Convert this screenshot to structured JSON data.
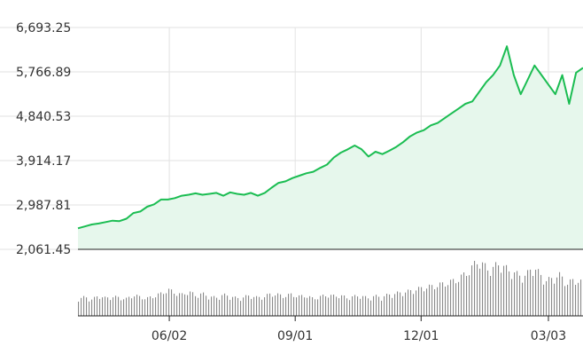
{
  "chart_data": {
    "type": "area",
    "title": "",
    "xlabel": "",
    "ylabel": "",
    "y_ticks": [
      "6,693.25",
      "5,766.89",
      "4,840.53",
      "3,914.17",
      "2,987.81",
      "2,061.45"
    ],
    "y_tick_values": [
      6693.25,
      5766.89,
      4840.53,
      3914.17,
      2987.81,
      2061.45
    ],
    "ylim": [
      2061.45,
      6693.25
    ],
    "x_ticks": [
      "06/02",
      "09/01",
      "12/01",
      "03/03"
    ],
    "x_tick_days": [
      66,
      157,
      248,
      340
    ],
    "xlim_days": [
      0,
      365
    ],
    "grid": true,
    "legend": "none",
    "colors": {
      "line": "#1bbd52",
      "fill": "#e6f7ec",
      "grid": "#e2e2e2",
      "volume": "#8a8a8a",
      "axis": "#222222",
      "text": "#333333"
    },
    "series": [
      {
        "x_days": [
          0,
          5,
          10,
          15,
          20,
          25,
          30,
          35,
          40,
          45,
          50,
          55,
          60,
          65,
          70,
          75,
          80,
          85,
          90,
          95,
          100,
          105,
          110,
          115,
          120,
          125,
          130,
          135,
          140,
          145,
          150,
          155,
          160,
          165,
          170,
          175,
          180,
          185,
          190,
          195,
          200,
          205,
          210,
          215,
          220,
          225,
          230,
          235,
          240,
          245,
          250,
          255,
          260,
          265,
          270,
          275,
          280,
          285,
          290,
          295,
          300,
          305,
          310,
          315,
          320,
          325,
          330,
          335,
          340,
          345,
          350,
          355,
          360,
          365
        ],
        "values": [
          2500,
          2540,
          2580,
          2600,
          2630,
          2660,
          2650,
          2700,
          2820,
          2850,
          2950,
          3000,
          3100,
          3100,
          3130,
          3180,
          3200,
          3230,
          3200,
          3220,
          3240,
          3180,
          3250,
          3220,
          3200,
          3240,
          3180,
          3240,
          3350,
          3450,
          3480,
          3550,
          3600,
          3650,
          3680,
          3760,
          3830,
          3980,
          4080,
          4150,
          4230,
          4150,
          4000,
          4100,
          4050,
          4120,
          4200,
          4300,
          4420,
          4500,
          4550,
          4650,
          4700,
          4800,
          4900,
          5000,
          5100,
          5150,
          5350,
          5550,
          5700,
          5900,
          6300,
          5700,
          5300,
          5600,
          5900,
          5700,
          5500,
          5300,
          5700,
          5100,
          5750,
          5850
        ]
      }
    ],
    "volume": {
      "note": "trading volume bars, relative",
      "values": [
        0.3,
        0.32,
        0.28,
        0.35,
        0.3,
        0.33,
        0.31,
        0.29,
        0.36,
        0.32,
        0.3,
        0.34,
        0.38,
        0.45,
        0.4,
        0.36,
        0.42,
        0.35,
        0.38,
        0.33,
        0.31,
        0.36,
        0.34,
        0.3,
        0.32,
        0.35,
        0.31,
        0.33,
        0.38,
        0.36,
        0.34,
        0.37,
        0.33,
        0.35,
        0.3,
        0.32,
        0.36,
        0.34,
        0.35,
        0.31,
        0.33,
        0.35,
        0.3,
        0.34,
        0.32,
        0.36,
        0.38,
        0.4,
        0.42,
        0.45,
        0.48,
        0.5,
        0.52,
        0.55,
        0.58,
        0.62,
        0.7,
        0.8,
        0.95,
        0.85,
        0.78,
        0.9,
        0.82,
        0.75,
        0.7,
        0.68,
        0.85,
        0.72,
        0.6,
        0.65,
        0.7,
        0.55,
        0.62,
        0.58
      ]
    }
  }
}
